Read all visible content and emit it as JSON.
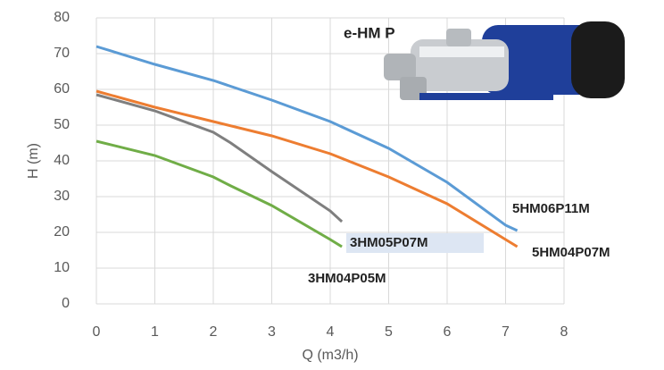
{
  "chart_data": {
    "type": "line",
    "image_label": "e-HM P",
    "xlabel": "Q (m3/h)",
    "ylabel": "H (m)",
    "xlim": [
      0,
      8
    ],
    "xticks": [
      0,
      1,
      2,
      3,
      4,
      5,
      6,
      7,
      8
    ],
    "ylim": [
      0,
      80
    ],
    "yticks": [
      0,
      10,
      20,
      30,
      40,
      50,
      60,
      70,
      80
    ],
    "grid": true,
    "series": [
      {
        "name": "5HM06P11M",
        "color": "#5b9bd5",
        "x": [
          0,
          1,
          2,
          3,
          4,
          5,
          6,
          7,
          7.2
        ],
        "values": [
          72,
          67,
          62.5,
          57,
          51,
          43.5,
          34,
          22,
          20.5
        ]
      },
      {
        "name": "5HM04P07M",
        "color": "#ed7d31",
        "x": [
          0,
          1,
          2,
          3,
          4,
          5,
          6,
          7,
          7.2
        ],
        "values": [
          59.5,
          55,
          51,
          47,
          42,
          35.5,
          28,
          18,
          16
        ]
      },
      {
        "name": "3HM05P07M",
        "color": "#7f7f7f",
        "x": [
          0,
          1,
          2,
          2.3,
          3,
          4,
          4.2
        ],
        "values": [
          58.5,
          54,
          48,
          45,
          37,
          26,
          23
        ]
      },
      {
        "name": "3HM04P05M",
        "color": "#70ad47",
        "x": [
          0,
          1,
          2,
          2.3,
          3,
          4,
          4.2
        ],
        "values": [
          45.5,
          41.5,
          35.5,
          33,
          27.5,
          18,
          16
        ]
      }
    ]
  }
}
